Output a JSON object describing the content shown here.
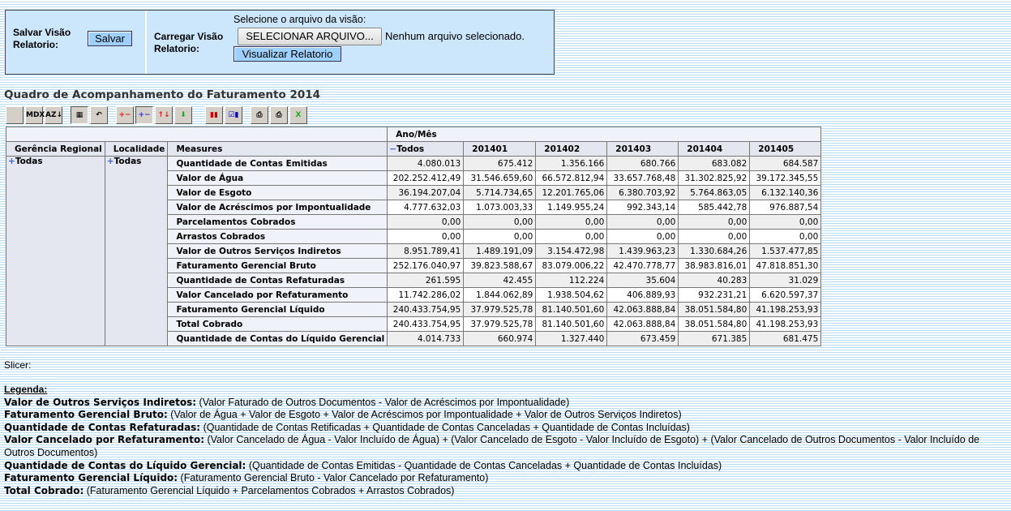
{
  "panel": {
    "save_label": "Salvar Visão Relatorio:",
    "save_button": "Salvar",
    "load_label": "Carregar Visão Relatorio:",
    "select_prompt": "Selecione o arquivo da visão:",
    "file_button": "SELECIONAR ARQUIVO...",
    "file_status": "Nenhum arquivo selecionado.",
    "view_button": "Visualizar Relatorio"
  },
  "title": "Quadro de Acompanhamento do Faturamento 2014",
  "toolbar": [
    {
      "icon": "cube-icon",
      "label": ""
    },
    {
      "icon": "mdx-icon",
      "label": "MDX"
    },
    {
      "icon": "sort-az-icon",
      "label": "AZ↓"
    },
    {
      "icon": "hide-empty-icon",
      "label": "▦",
      "active": true
    },
    {
      "icon": "swap-axes-icon",
      "label": "↶"
    },
    {
      "icon": "drill-member-icon",
      "label": "+−"
    },
    {
      "icon": "drill-position-icon",
      "label": "+−",
      "active": true
    },
    {
      "icon": "drill-replace-icon",
      "label": "↑↓"
    },
    {
      "icon": "drill-through-icon",
      "label": "⬇"
    },
    {
      "icon": "chart-icon",
      "label": "▮▮"
    },
    {
      "icon": "chart-config-icon",
      "label": "☑▮"
    },
    {
      "icon": "print-config-icon",
      "label": "⎙"
    },
    {
      "icon": "print-icon",
      "label": "⎙"
    },
    {
      "icon": "excel-icon",
      "label": "X"
    }
  ],
  "table": {
    "col_axis_label": "Ano/Mês",
    "headers": [
      "Gerência Regional",
      "Localidade",
      "Measures"
    ],
    "columns": [
      "Todos",
      "201401",
      "201402",
      "201403",
      "201404",
      "201405"
    ],
    "gerencia": "Todas",
    "localidade": "Todas",
    "rows": [
      {
        "measure": "Quantidade de Contas Emitidas",
        "values": [
          "4.080.013",
          "675.412",
          "1.356.166",
          "680.766",
          "683.082",
          "684.587"
        ]
      },
      {
        "measure": "Valor de Água",
        "values": [
          "202.252.412,49",
          "31.546.659,60",
          "66.572.812,94",
          "33.657.768,48",
          "31.302.825,92",
          "39.172.345,55"
        ]
      },
      {
        "measure": "Valor de Esgoto",
        "values": [
          "36.194.207,04",
          "5.714.734,65",
          "12.201.765,06",
          "6.380.703,92",
          "5.764.863,05",
          "6.132.140,36"
        ]
      },
      {
        "measure": "Valor de Acréscimos por Impontualidade",
        "values": [
          "4.777.632,03",
          "1.073.003,33",
          "1.149.955,24",
          "992.343,14",
          "585.442,78",
          "976.887,54"
        ]
      },
      {
        "measure": "Parcelamentos Cobrados",
        "values": [
          "0,00",
          "0,00",
          "0,00",
          "0,00",
          "0,00",
          "0,00"
        ]
      },
      {
        "measure": "Arrastos Cobrados",
        "values": [
          "0,00",
          "0,00",
          "0,00",
          "0,00",
          "0,00",
          "0,00"
        ]
      },
      {
        "measure": "Valor de Outros Serviços Indiretos",
        "values": [
          "8.951.789,41",
          "1.489.191,09",
          "3.154.472,98",
          "1.439.963,23",
          "1.330.684,26",
          "1.537.477,85"
        ]
      },
      {
        "measure": "Faturamento Gerencial Bruto",
        "values": [
          "252.176.040,97",
          "39.823.588,67",
          "83.079.006,22",
          "42.470.778,77",
          "38.983.816,01",
          "47.818.851,30"
        ]
      },
      {
        "measure": "Quantidade de Contas Refaturadas",
        "values": [
          "261.595",
          "42.455",
          "112.224",
          "35.604",
          "40.283",
          "31.029"
        ]
      },
      {
        "measure": "Valor Cancelado por Refaturamento",
        "values": [
          "11.742.286,02",
          "1.844.062,89",
          "1.938.504,62",
          "406.889,93",
          "932.231,21",
          "6.620.597,37"
        ]
      },
      {
        "measure": "Faturamento Gerencial Líquido",
        "values": [
          "240.433.754,95",
          "37.979.525,78",
          "81.140.501,60",
          "42.063.888,84",
          "38.051.584,80",
          "41.198.253,93"
        ]
      },
      {
        "measure": "Total Cobrado",
        "values": [
          "240.433.754,95",
          "37.979.525,78",
          "81.140.501,60",
          "42.063.888,84",
          "38.051.584,80",
          "41.198.253,93"
        ]
      },
      {
        "measure": "Quantidade de Contas do Líquido Gerencial",
        "values": [
          "4.014.733",
          "660.974",
          "1.327.440",
          "673.459",
          "671.385",
          "681.475"
        ]
      }
    ]
  },
  "slicer": "Slicer:",
  "legend": {
    "title": "Legenda:",
    "items": [
      {
        "term": "Valor de Outros Serviços Indiretos:",
        "def": " (Valor Faturado de Outros Documentos - Valor de Acréscimos por Impontualidade)"
      },
      {
        "term": "Faturamento Gerencial Bruto:",
        "def": " (Valor de Água + Valor de Esgoto + Valor de Acréscimos por Impontualidade + Valor de Outros Serviços Indiretos)"
      },
      {
        "term": "Quantidade de Contas Refaturadas:",
        "def": " (Quantidade de Contas Retificadas + Quantidade de Contas Canceladas + Quantidade de Contas Incluídas)"
      },
      {
        "term": "Valor Cancelado por Refaturamento:",
        "def": " (Valor Cancelado de Água - Valor Incluído de Água) + (Valor Cancelado de Esgoto - Valor Incluído de Esgoto) + (Valor Cancelado de Outros Documentos - Valor Incluído de Outros Documentos)"
      },
      {
        "term": "Quantidade de Contas do Líquido Gerencial:",
        "def": " (Quantidade de Contas Emitidas - Quantidade de Contas Canceladas + Quantidade de Contas Incluídas)"
      },
      {
        "term": "Faturamento Gerencial Líquido:",
        "def": " (Faturamento Gerencial Bruto - Valor Cancelado por Refaturamento)"
      },
      {
        "term": "Total Cobrado:",
        "def": " (Faturamento Gerencial Líquido + Parcelamentos Cobrados + Arrastos Cobrados)"
      }
    ]
  }
}
